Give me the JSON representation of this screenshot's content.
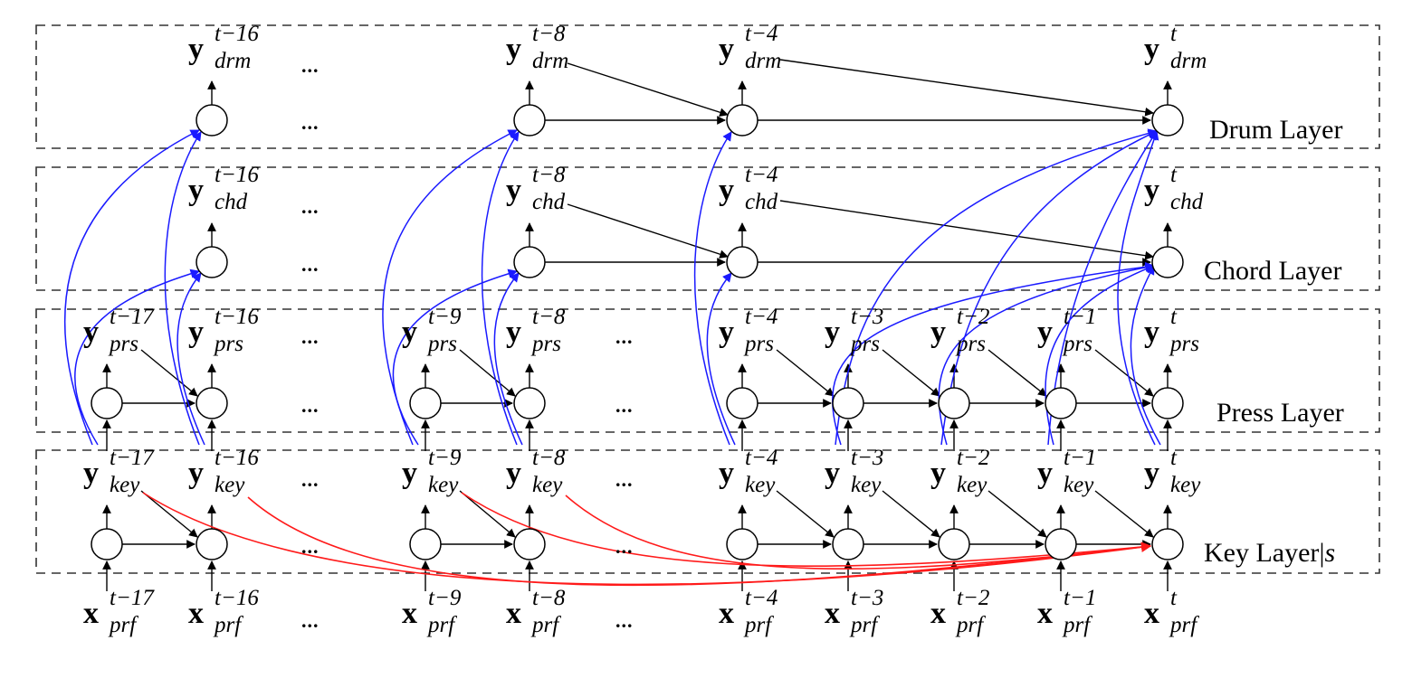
{
  "layers": [
    {
      "id": "drm",
      "name": "Drum Layer"
    },
    {
      "id": "chd",
      "name": "Chord Layer"
    },
    {
      "id": "prs",
      "name": "Press Layer"
    },
    {
      "id": "key",
      "name": "Key Layer",
      "suffix_bar": "|",
      "suffix_var": "s"
    }
  ],
  "symbols": {
    "output": "y",
    "input": "x"
  },
  "subscripts": {
    "drm": "drm",
    "chd": "chd",
    "prs": "prs",
    "key": "key",
    "prf": "prf"
  },
  "time_steps": {
    "t17": "t−17",
    "t16": "t−16",
    "t9": "t−9",
    "t8": "t−8",
    "t4": "t−4",
    "t3": "t−3",
    "t2": "t−2",
    "t1": "t−1",
    "t": "t"
  },
  "ellipsis": "...",
  "colors": {
    "edge_black": "#000000",
    "edge_blue": "#1a1aff",
    "edge_red": "#ff1a1a",
    "box_dash": "#333333"
  }
}
